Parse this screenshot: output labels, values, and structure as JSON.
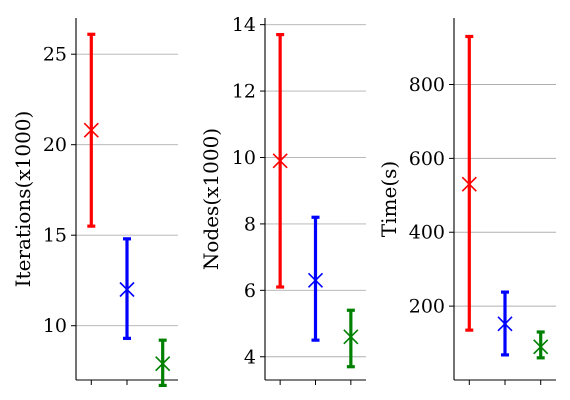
{
  "colors": {
    "red": "#ff0000",
    "blue": "#0000ff",
    "green": "#008000",
    "grid": "#b0b0b0",
    "axis": "#000000"
  },
  "chart_data": [
    {
      "type": "scatter",
      "title": "",
      "ylabel": "Iterations(x1000)",
      "xlabel": "",
      "ylim": [
        7.0,
        27.0
      ],
      "yticks": [
        10,
        15,
        20,
        25
      ],
      "grid": "y",
      "series": [
        {
          "color": "red",
          "mean": 20.8,
          "low": 15.5,
          "high": 26.1
        },
        {
          "color": "blue",
          "mean": 12.0,
          "low": 9.3,
          "high": 14.8
        },
        {
          "color": "green",
          "mean": 7.9,
          "low": 6.7,
          "high": 9.2
        }
      ]
    },
    {
      "type": "scatter",
      "title": "",
      "ylabel": "Nodes(x1000)",
      "xlabel": "",
      "ylim": [
        3.3,
        14.2
      ],
      "yticks": [
        4,
        6,
        8,
        10,
        12,
        14
      ],
      "grid": "y",
      "series": [
        {
          "color": "red",
          "mean": 9.9,
          "low": 6.1,
          "high": 13.7
        },
        {
          "color": "blue",
          "mean": 6.3,
          "low": 4.5,
          "high": 8.2
        },
        {
          "color": "green",
          "mean": 4.6,
          "low": 3.7,
          "high": 5.4
        }
      ]
    },
    {
      "type": "scatter",
      "title": "",
      "ylabel": "Time(s)",
      "xlabel": "",
      "ylim": [
        0,
        980
      ],
      "yticks": [
        200,
        400,
        600,
        800
      ],
      "grid": "y",
      "series": [
        {
          "color": "red",
          "mean": 530,
          "low": 135,
          "high": 930
        },
        {
          "color": "blue",
          "mean": 152,
          "low": 68,
          "high": 238
        },
        {
          "color": "green",
          "mean": 90,
          "low": 60,
          "high": 130
        }
      ]
    }
  ]
}
